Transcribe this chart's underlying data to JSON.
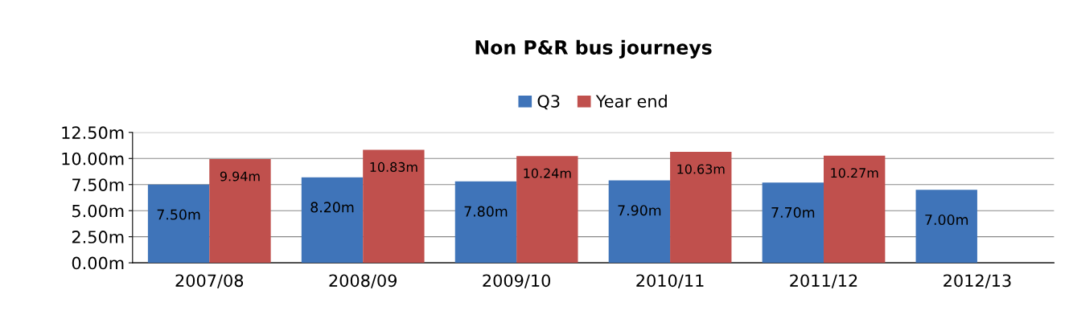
{
  "chart_data": {
    "type": "bar",
    "title": "Non P&R bus journeys",
    "categories": [
      "2007/08",
      "2008/09",
      "2009/10",
      "2010/11",
      "2011/12",
      "2012/13"
    ],
    "series": [
      {
        "name": "Q3",
        "color": "#3f74b9",
        "values": [
          7.5,
          8.2,
          7.8,
          7.9,
          7.7,
          7.0
        ],
        "value_labels": [
          "7.50m",
          "8.20m",
          "7.80m",
          "7.90m",
          "7.70m",
          "7.00m"
        ]
      },
      {
        "name": "Year end",
        "color": "#c0504d",
        "values": [
          9.94,
          10.83,
          10.24,
          10.63,
          10.27,
          null
        ],
        "value_labels": [
          "9.94m",
          "10.83m",
          "10.24m",
          "10.63m",
          "10.27m",
          null
        ]
      }
    ],
    "ylim": [
      0,
      12.5
    ],
    "yticks": [
      {
        "value": 0,
        "label": "0.00m"
      },
      {
        "value": 2.5,
        "label": "2.50m"
      },
      {
        "value": 5,
        "label": "5.00m"
      },
      {
        "value": 7.5,
        "label": "7.50m"
      },
      {
        "value": 10,
        "label": "10.00m"
      },
      {
        "value": 12.5,
        "label": "12.50m"
      }
    ],
    "grid": "y",
    "legend": "top"
  }
}
